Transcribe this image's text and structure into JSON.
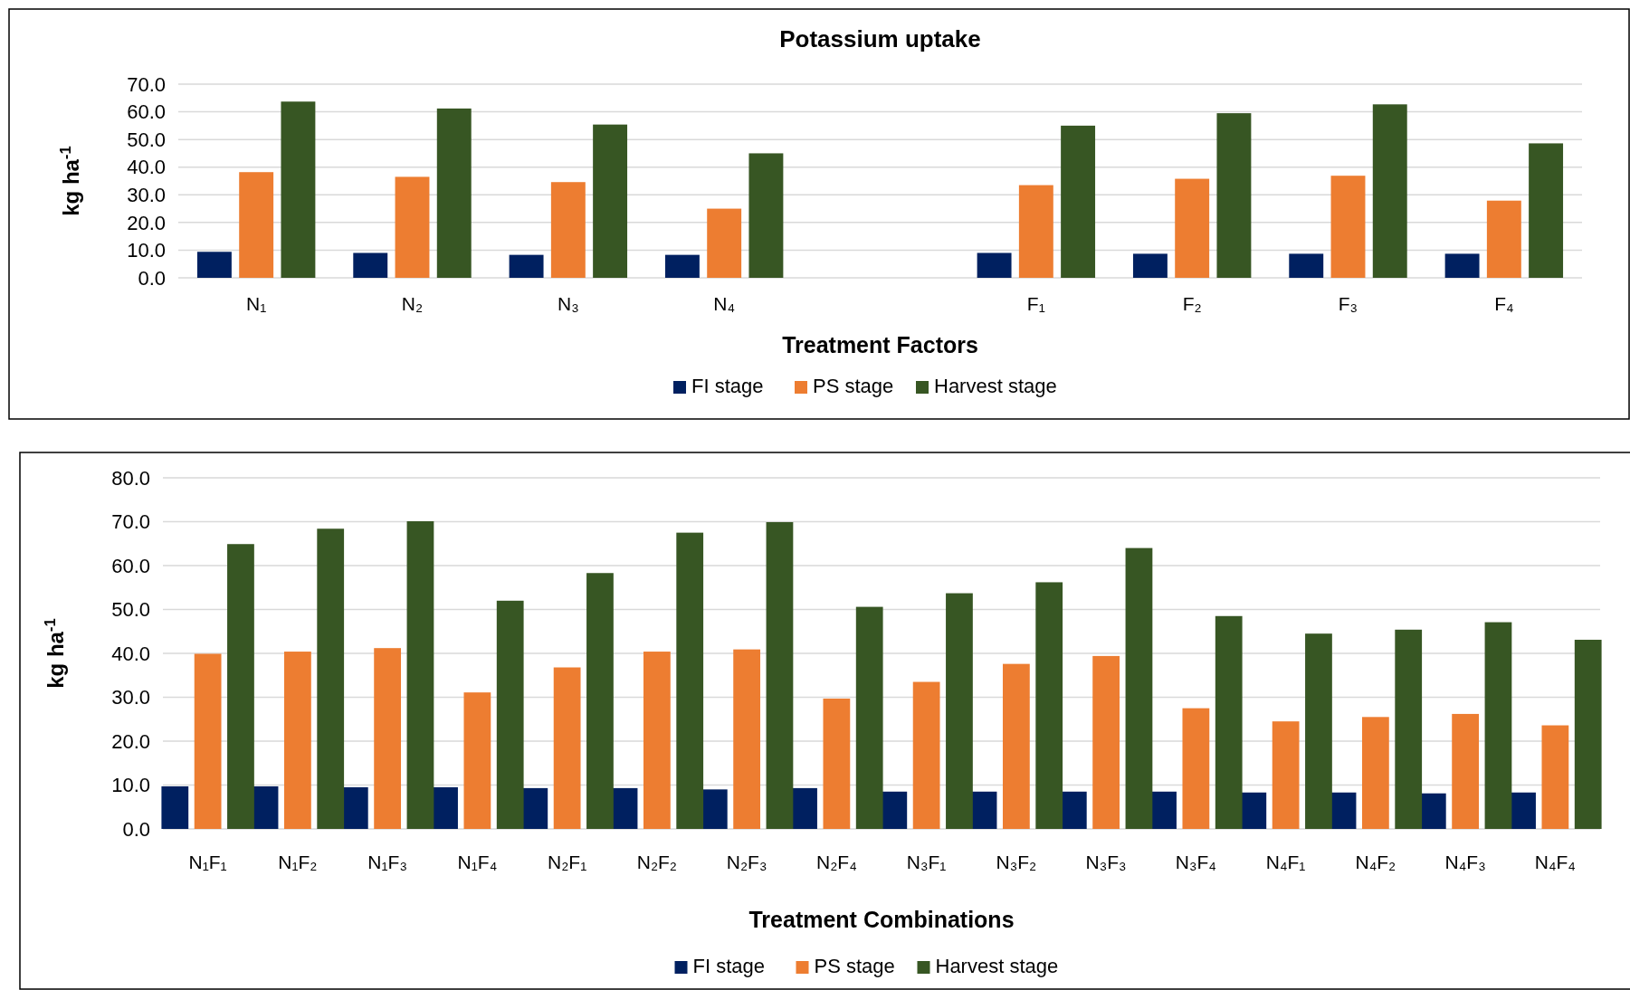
{
  "chart_data": [
    {
      "type": "bar",
      "title": "Potassium uptake",
      "xlabel": "Treatment Factors",
      "ylabel": "kg ha$^{-1}$",
      "categories": [
        "N₁",
        "N₂",
        "N₃",
        "N₄",
        null,
        "F₁",
        "F₂",
        "F₃",
        "F₄"
      ],
      "series": [
        {
          "name": "FI stage",
          "color": "#002060",
          "values": [
            9.4,
            9.0,
            8.3,
            8.3,
            null,
            9.0,
            8.7,
            8.7,
            8.7
          ]
        },
        {
          "name": "PS stage",
          "color": "#ed7d31",
          "values": [
            38.2,
            36.5,
            34.6,
            25.0,
            null,
            33.5,
            35.8,
            36.9,
            27.9
          ]
        },
        {
          "name": "Harvest stage",
          "color": "#375623",
          "values": [
            63.7,
            61.2,
            55.4,
            45.0,
            null,
            55.0,
            59.5,
            62.7,
            48.6
          ]
        }
      ],
      "ylim": [
        0,
        70
      ],
      "yticks": [
        {
          "value": 0,
          "label": "0.0"
        },
        {
          "value": 10,
          "label": "10.0"
        },
        {
          "value": 20,
          "label": "20.0"
        },
        {
          "value": 30,
          "label": "30.0"
        },
        {
          "value": 40,
          "label": "40.0"
        },
        {
          "value": 50,
          "label": "50.0"
        },
        {
          "value": 60,
          "label": "60.0"
        },
        {
          "value": 70,
          "label": "70.0"
        }
      ],
      "grid": "y",
      "legend": "bottom"
    },
    {
      "type": "bar",
      "xlabel": "Treatment Combinations",
      "ylabel": "kg ha$^{-1}$",
      "categories": [
        "N₁F₁",
        "N₁F₂",
        "N₁F₃",
        "N₁F₄",
        "N₂F₁",
        "N₂F₂",
        "N₂F₃",
        "N₂F₄",
        "N₃F₁",
        "N₃F₂",
        "N₃F₃",
        "N₃F₄",
        "N₄F₁",
        "N₄F₂",
        "N₄F₃",
        "N₄F₄"
      ],
      "series": [
        {
          "name": "FI stage",
          "color": "#002060",
          "values": [
            9.7,
            9.7,
            9.5,
            9.5,
            9.3,
            9.3,
            9.0,
            9.3,
            8.5,
            8.5,
            8.5,
            8.5,
            8.3,
            8.3,
            8.1,
            8.3
          ]
        },
        {
          "name": "PS stage",
          "color": "#ed7d31",
          "values": [
            39.9,
            40.4,
            41.2,
            31.1,
            36.8,
            40.4,
            40.9,
            29.7,
            33.5,
            37.6,
            39.4,
            27.5,
            24.5,
            25.5,
            26.2,
            23.6
          ]
        },
        {
          "name": "Harvest stage",
          "color": "#375623",
          "values": [
            64.9,
            68.4,
            70.1,
            52.0,
            58.3,
            67.5,
            69.9,
            50.6,
            53.7,
            56.2,
            64.0,
            48.5,
            44.5,
            45.4,
            47.1,
            43.1
          ]
        }
      ],
      "ylim": [
        0,
        80
      ],
      "yticks": [
        {
          "value": 0,
          "label": "0.0"
        },
        {
          "value": 10,
          "label": "10.0"
        },
        {
          "value": 20,
          "label": "20.0"
        },
        {
          "value": 30,
          "label": "30.0"
        },
        {
          "value": 40,
          "label": "40.0"
        },
        {
          "value": 50,
          "label": "50.0"
        },
        {
          "value": 60,
          "label": "60.0"
        },
        {
          "value": 70,
          "label": "70.0"
        },
        {
          "value": 80,
          "label": "80.0"
        }
      ],
      "grid": "y",
      "legend": "bottom"
    }
  ]
}
